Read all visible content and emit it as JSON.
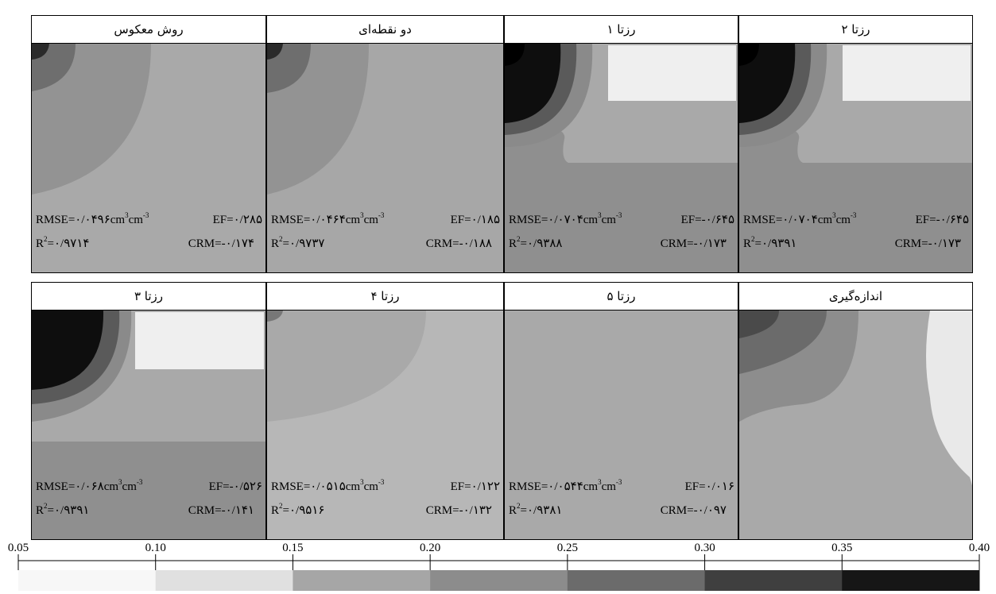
{
  "panels": [
    {
      "title": "روش معکوس",
      "rmse": "RMSE=۰/۰۴۹۶",
      "ef": "EF=۰/۲۸۵",
      "r2": "=۰/۹۷۱۴",
      "crm": "CRM=-۰/۱۷۴",
      "scene": "inverse"
    },
    {
      "title": "دو نقطه‌ای",
      "rmse": "RMSE=۰/۰۴۶۴",
      "ef": "EF=۰/۱۸۵",
      "r2": "=۰/۹۷۳۷",
      "crm": "CRM=-۰/۱۸۸",
      "scene": "twopoint"
    },
    {
      "title": "رزتا ۱",
      "rmse": "RMSE=۰/۰۷۰۴",
      "ef": "EF=-۰/۶۴۵",
      "r2": "=۰/۹۳۸۸",
      "crm": "CRM=-۰/۱۷۳",
      "scene": "rosetta1"
    },
    {
      "title": "رزتا ۲",
      "rmse": "RMSE=۰/۰۷۰۴",
      "ef": "EF=-۰/۶۴۵",
      "r2": "=۰/۹۳۹۱",
      "crm": "CRM=-۰/۱۷۳",
      "scene": "rosetta2"
    },
    {
      "title": "رزتا ۳",
      "rmse": "RMSE=۰/۰۶۸",
      "ef": "EF=-۰/۵۲۶",
      "r2": "=۰/۹۳۹۱",
      "crm": "CRM=-۰/۱۴۱",
      "scene": "rosetta3"
    },
    {
      "title": "رزتا ۴",
      "rmse": "RMSE=۰/۰۵۱۵",
      "ef": "EF=۰/۱۲۲",
      "r2": "=۰/۹۵۱۶",
      "crm": "CRM=-۰/۱۳۲",
      "scene": "rosetta4"
    },
    {
      "title": "رزتا ۵",
      "rmse": "RMSE=۰/۰۵۴۴",
      "ef": "EF=۰/۰۱۶",
      "r2": "=۰/۹۳۸۱",
      "crm": "CRM=-۰/۰۹۷",
      "scene": "rosetta5"
    },
    {
      "title": "اندازه‌گیری",
      "rmse": "",
      "ef": "",
      "r2": "",
      "crm": "",
      "scene": "measured"
    }
  ],
  "units": {
    "cm": "cm",
    "exp": "3",
    "cm2": "cm",
    "exp2": "-3",
    "r": "R",
    "r_exp": "2"
  },
  "colorbar": {
    "ticks": [
      "0.05",
      "0.10",
      "0.15",
      "0.20",
      "0.25",
      "0.30",
      "0.35",
      "0.40"
    ],
    "values": [
      0.05,
      0.1,
      0.15,
      0.2,
      0.25,
      0.3,
      0.35,
      0.4
    ],
    "colors": [
      "#f7f7f7",
      "#e0e0e0",
      "#a6a6a6",
      "#8c8c8c",
      "#6b6b6b",
      "#3f3f3f",
      "#161616"
    ]
  }
}
